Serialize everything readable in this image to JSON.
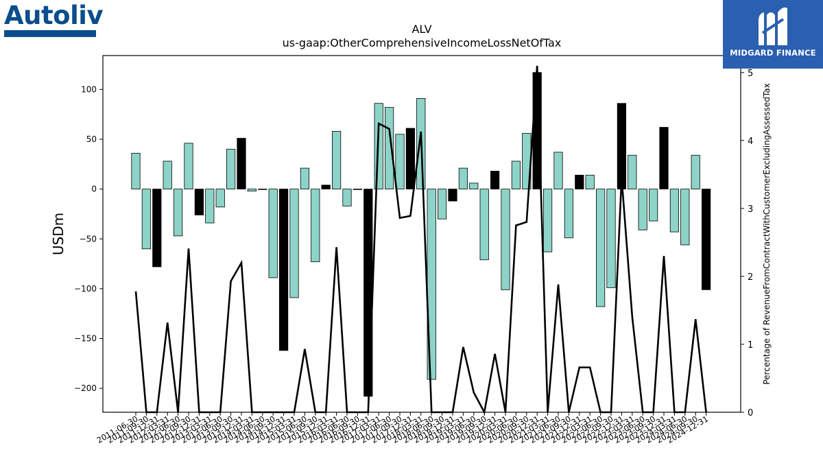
{
  "branding": {
    "left_logo_text": "Autoliv",
    "right_logo_text": "MIDGARD FINANCE",
    "left_color": "#0a4d8c",
    "right_bg": "#2b5fb0"
  },
  "chart_data": {
    "type": "bar",
    "title": "ALV",
    "subtitle": "us-gaap:OtherComprehensiveIncomeLossNetOfTax",
    "ylabel": "USDm",
    "y2label": "Percentage of RevenueFromContractWithCustomerExcludingAssessedTax",
    "ylim": [
      -224,
      134
    ],
    "y2lim": [
      0,
      5.25
    ],
    "yticks": [
      100,
      50,
      0,
      -50,
      -100,
      -150,
      -200
    ],
    "y2ticks": [
      5,
      4,
      3,
      2,
      1,
      0
    ],
    "bar_colors": {
      "normal": "#8dd3c7",
      "highlight": "#000000"
    },
    "categories": [
      "2011-06-30",
      "2011-09-30",
      "2011-12-31",
      "2012-03-31",
      "2012-06-30",
      "2012-09-30",
      "2012-12-31",
      "2013-03-31",
      "2013-06-30",
      "2013-09-30",
      "2013-12-31",
      "2014-03-31",
      "2014-06-30",
      "2014-09-30",
      "2014-12-31",
      "2015-03-31",
      "2015-06-30",
      "2015-09-30",
      "2015-12-31",
      "2016-03-31",
      "2016-06-30",
      "2016-09-30",
      "2016-12-31",
      "2017-03-31",
      "2017-06-30",
      "2017-09-30",
      "2017-12-31",
      "2018-03-31",
      "2018-06-30",
      "2018-09-30",
      "2018-12-31",
      "2019-03-31",
      "2019-06-30",
      "2019-09-30",
      "2019-12-31",
      "2020-03-31",
      "2020-06-30",
      "2020-09-30",
      "2020-12-31",
      "2021-03-31",
      "2021-06-30",
      "2021-09-30",
      "2021-12-31",
      "2022-03-31",
      "2022-06-30",
      "2022-09-30",
      "2022-12-31",
      "2023-03-31",
      "2023-06-30",
      "2023-09-30",
      "2023-12-31",
      "2024-03-31",
      "2024-06-30",
      "2024-09-30",
      "2024-12-31"
    ],
    "values": [
      36,
      -60,
      -78,
      28,
      -47,
      46,
      -26,
      -34,
      -18,
      40,
      51,
      -2,
      0,
      -89,
      -162,
      -109,
      21,
      -73,
      4,
      58,
      -17,
      0,
      -208,
      86,
      82,
      55,
      61,
      91,
      -191,
      -30,
      -12,
      21,
      6,
      -71,
      18,
      -101,
      28,
      56,
      117,
      -63,
      37,
      -49,
      14,
      14,
      -118,
      -99,
      86,
      34,
      -41,
      -32,
      62,
      -43,
      -56,
      34,
      -101
    ],
    "highlighted": [
      false,
      false,
      true,
      false,
      false,
      false,
      true,
      false,
      false,
      false,
      true,
      false,
      false,
      false,
      true,
      false,
      false,
      false,
      true,
      false,
      false,
      false,
      true,
      false,
      false,
      false,
      true,
      false,
      false,
      false,
      true,
      false,
      false,
      false,
      true,
      false,
      false,
      false,
      true,
      false,
      false,
      false,
      true,
      false,
      false,
      false,
      true,
      false,
      false,
      false,
      true,
      false,
      false,
      false,
      true
    ],
    "line_values": [
      1.78,
      0,
      0,
      1.32,
      0,
      2.41,
      0,
      0,
      0,
      1.93,
      2.2,
      0,
      0,
      0,
      0,
      0,
      0.93,
      0,
      0,
      2.43,
      0,
      0,
      0,
      4.25,
      4.17,
      2.86,
      2.89,
      4.13,
      0,
      0,
      0,
      0.96,
      0.29,
      0,
      0.86,
      0,
      2.75,
      2.8,
      5.1,
      0,
      1.88,
      0,
      0.66,
      0.66,
      0,
      0,
      3.45,
      1.41,
      0,
      0,
      2.3,
      0,
      0,
      1.37,
      0
    ],
    "legend": "none",
    "grid": false
  }
}
